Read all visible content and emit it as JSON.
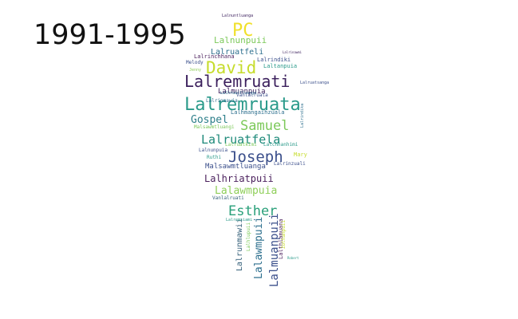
{
  "title": "1991-1995",
  "words": [
    {
      "text": "Lalremruata",
      "color": "#2a9a8a"
    },
    {
      "text": "Lalremruati",
      "color": "#3b1f5c"
    },
    {
      "text": "David",
      "color": "#c6dc2c"
    },
    {
      "text": "Joseph",
      "color": "#3b4f8b"
    },
    {
      "text": "PC",
      "color": "#f0e02a"
    },
    {
      "text": "Samuel",
      "color": "#7cc95a"
    },
    {
      "text": "Lalruatfela",
      "color": "#1e8a7a"
    },
    {
      "text": "Esther",
      "color": "#2aa07a"
    },
    {
      "text": "Lalhriatpuii",
      "color": "#4a1f5c"
    },
    {
      "text": "Lalawmpuia",
      "color": "#8fcf5a"
    },
    {
      "text": "Gospel",
      "color": "#2d7f8a"
    },
    {
      "text": "Lalmuanpuii",
      "color": "#3b4f8b"
    },
    {
      "text": "Lalawmpuii",
      "color": "#2d6f8e"
    },
    {
      "text": "Lalrunmawii",
      "color": "#35607a"
    },
    {
      "text": "Lalnunpuii",
      "color": "#7cc95a"
    },
    {
      "text": "Lalruatfeli",
      "color": "#2d6f8e"
    },
    {
      "text": "Lalmuanpuia",
      "color": "#3b1f5c"
    },
    {
      "text": "Malsawmtluanga",
      "color": "#3b4f8b"
    },
    {
      "text": "Laltanpuia",
      "color": "#2a9a8a"
    },
    {
      "text": "Lalrinchhana",
      "color": "#4a1f5c"
    },
    {
      "text": "Lalrindiki",
      "color": "#3b4f8b"
    },
    {
      "text": "Lalhmangaihzuala",
      "color": "#2d6f8e"
    },
    {
      "text": "Malsawmtluangi",
      "color": "#7cc95a"
    },
    {
      "text": "Lalnunpuia",
      "color": "#3b4f8b"
    },
    {
      "text": "Vanlalruati",
      "color": "#35607a"
    },
    {
      "text": "Mary",
      "color": "#c6dc2c"
    },
    {
      "text": "Melody",
      "color": "#3b4f8b"
    },
    {
      "text": "Jenny",
      "color": "#8fcf5a"
    },
    {
      "text": "Ruthi",
      "color": "#2a9a8a"
    },
    {
      "text": "Lalrinzuali",
      "color": "#3b4f8b"
    },
    {
      "text": "Lalhruaitluanga",
      "color": "#2d6f8e"
    },
    {
      "text": "Lalrinawmi",
      "color": "#3b1f5c"
    },
    {
      "text": "Lalruatkimi",
      "color": "#7cc95a"
    },
    {
      "text": "Lalchhanhimi",
      "color": "#2a9a8a"
    },
    {
      "text": "Lalrinmawia",
      "color": "#2d6f8e"
    },
    {
      "text": "Vanlalruata",
      "color": "#3b4f8b"
    },
    {
      "text": "Lalremsiami",
      "color": "#2a9a8a"
    },
    {
      "text": "Lalthlamuana",
      "color": "#4a1f5c"
    },
    {
      "text": "Lalhlupuii",
      "color": "#7cc95a"
    },
    {
      "text": "Zothanpuii",
      "color": "#c6dc2c"
    },
    {
      "text": "Lalrindika",
      "color": "#2d6f8e"
    },
    {
      "text": "Lalruatsanga",
      "color": "#3b4f8b"
    },
    {
      "text": "Robert",
      "color": "#2a9a8a"
    },
    {
      "text": "Lalnuntluanga",
      "color": "#3b1f5c"
    }
  ]
}
